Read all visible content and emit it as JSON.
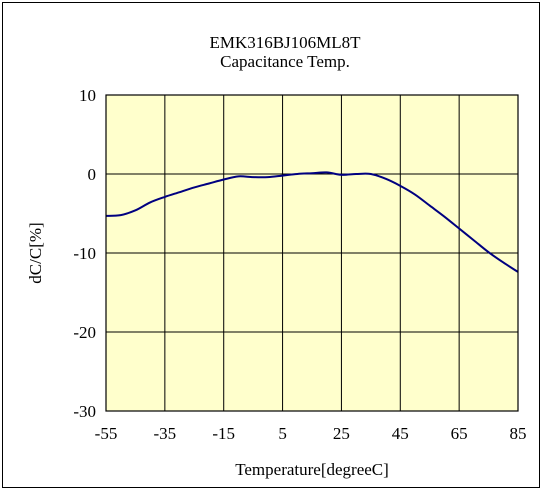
{
  "chart_data": {
    "type": "line",
    "title": "EMK316BJ106ML8T",
    "subtitle": "Capacitance Temp.",
    "xlabel": "Temperature[degreeC]",
    "ylabel": "dC/C[%]",
    "xlim": [
      -55,
      85
    ],
    "ylim": [
      -30,
      10
    ],
    "xticks": [
      -55,
      -35,
      -15,
      5,
      25,
      45,
      65,
      85
    ],
    "yticks": [
      -30,
      -20,
      -10,
      0,
      10
    ],
    "grid": true,
    "plot_background": "#ffffcc",
    "series": [
      {
        "color": "#000080",
        "x": [
          -55,
          -50,
          -45,
          -40,
          -35,
          -30,
          -25,
          -20,
          -15,
          -10,
          -5,
          0,
          5,
          10,
          15,
          20,
          25,
          30,
          35,
          40,
          45,
          50,
          55,
          60,
          65,
          70,
          75,
          80,
          85
        ],
        "y": [
          -5.3,
          -5.2,
          -4.6,
          -3.6,
          -2.9,
          -2.3,
          -1.7,
          -1.2,
          -0.7,
          -0.3,
          -0.4,
          -0.4,
          -0.2,
          0.0,
          0.1,
          0.2,
          -0.1,
          0.0,
          0.0,
          -0.6,
          -1.5,
          -2.6,
          -4.0,
          -5.4,
          -6.9,
          -8.4,
          -9.9,
          -11.2,
          -12.4
        ]
      }
    ]
  }
}
